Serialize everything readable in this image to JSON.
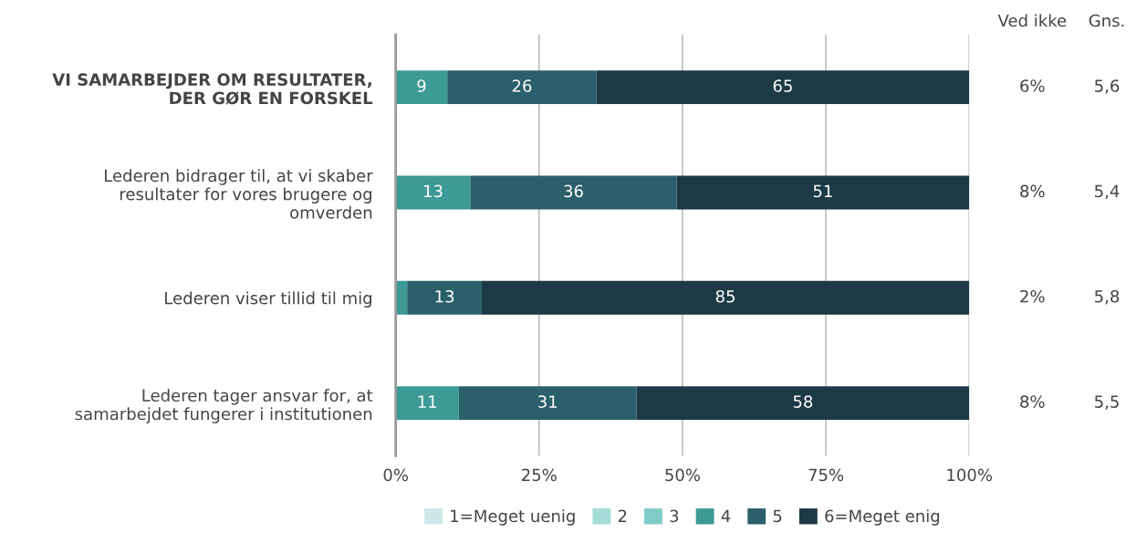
{
  "chart_data": {
    "type": "bar",
    "orientation": "horizontal",
    "stacked": true,
    "categories": [
      "VI SAMARBEJDER OM RESULTATER,\nDER GØR EN FORSKEL",
      "Lederen bidrager til, at vi skaber\nresultater for vores brugere og\nomverden",
      "Lederen viser tillid til mig",
      "Lederen tager ansvar for, at\nsamarbejdet fungerer i institutionen"
    ],
    "series": [
      {
        "name": "1=Meget uenig",
        "color": "#cde9e7",
        "values": [
          0,
          0,
          0,
          0
        ],
        "value_labels": [
          null,
          null,
          null,
          null
        ]
      },
      {
        "name": "2",
        "color": "#a6dcd8",
        "values": [
          0,
          0,
          0,
          0
        ],
        "value_labels": [
          null,
          null,
          null,
          null
        ]
      },
      {
        "name": "3",
        "color": "#80cbc5",
        "values": [
          0,
          0,
          0,
          0
        ],
        "value_labels": [
          null,
          null,
          null,
          null
        ]
      },
      {
        "name": "4",
        "color": "#3d9a96",
        "values": [
          9,
          13,
          2,
          11
        ],
        "value_labels": [
          "9",
          "13",
          null,
          "11"
        ]
      },
      {
        "name": "5",
        "color": "#2b5f6b",
        "values": [
          26,
          36,
          13,
          31
        ],
        "value_labels": [
          "26",
          "36",
          "13",
          "31"
        ]
      },
      {
        "name": "6=Meget enig",
        "color": "#1c3a45",
        "values": [
          65,
          51,
          85,
          58
        ],
        "value_labels": [
          "65",
          "51",
          "85",
          "58"
        ]
      }
    ],
    "xlim": [
      0,
      100
    ],
    "xticks": [
      {
        "value": 0,
        "label": "0%"
      },
      {
        "value": 25,
        "label": "25%"
      },
      {
        "value": 50,
        "label": "50%"
      },
      {
        "value": 75,
        "label": "75%"
      },
      {
        "value": 100,
        "label": "100%"
      }
    ],
    "grid": "x",
    "legend": "bottom",
    "annotations": [
      "Ved ikke",
      "Gns.",
      "6%",
      "5,6",
      "8%",
      "5,4",
      "2%",
      "5,8",
      "8%",
      "5,5"
    ]
  }
}
